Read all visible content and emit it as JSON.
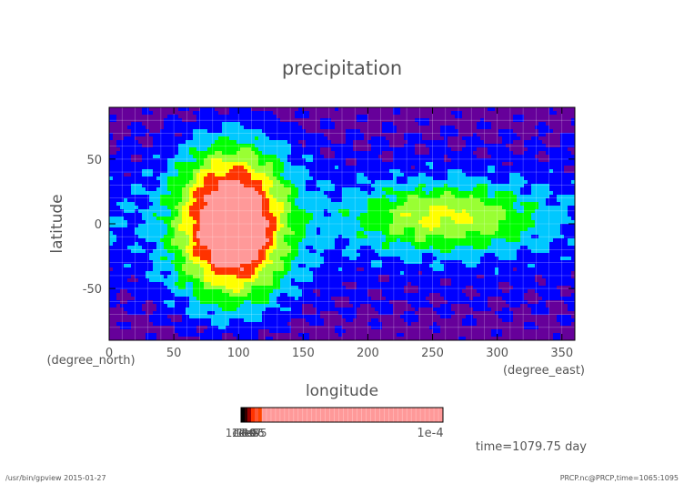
{
  "chart_data": {
    "type": "heatmap",
    "title": "precipitation",
    "xlabel": "longitude",
    "xunit": "(degree_east)",
    "ylabel": "latitude",
    "yunit": "(degree_north)",
    "xlim": [
      0,
      360
    ],
    "ylim": [
      -90,
      90
    ],
    "xticks": [
      0,
      50,
      100,
      150,
      200,
      250,
      300,
      350
    ],
    "yticks": [
      -50,
      0,
      50
    ],
    "grid": true,
    "colors": [
      "#66009a",
      "#0000ff",
      "#00c8ff",
      "#00ff00",
      "#99ff33",
      "#ffff00",
      "#ff3300",
      "#ff9999"
    ],
    "centers": [
      {
        "lon": 95,
        "lat": 0,
        "amp": 1.0,
        "sx": 40,
        "sy": 55
      },
      {
        "lon": 260,
        "lat": 5,
        "amp": 0.45,
        "sx": 70,
        "sy": 25
      }
    ],
    "colorbar": {
      "labels": [
        "1e-10",
        "1e-9",
        "1e-8",
        "1e-7",
        "1e-6",
        "1e-5",
        "1e-4"
      ],
      "label_text": "1e-4"
    },
    "time_label": "time=1079.75 day"
  },
  "footer": {
    "left": "/usr/bin/gpview  2015-01-27",
    "right": "PRCP.nc@PRCP,time=1065:1095"
  }
}
